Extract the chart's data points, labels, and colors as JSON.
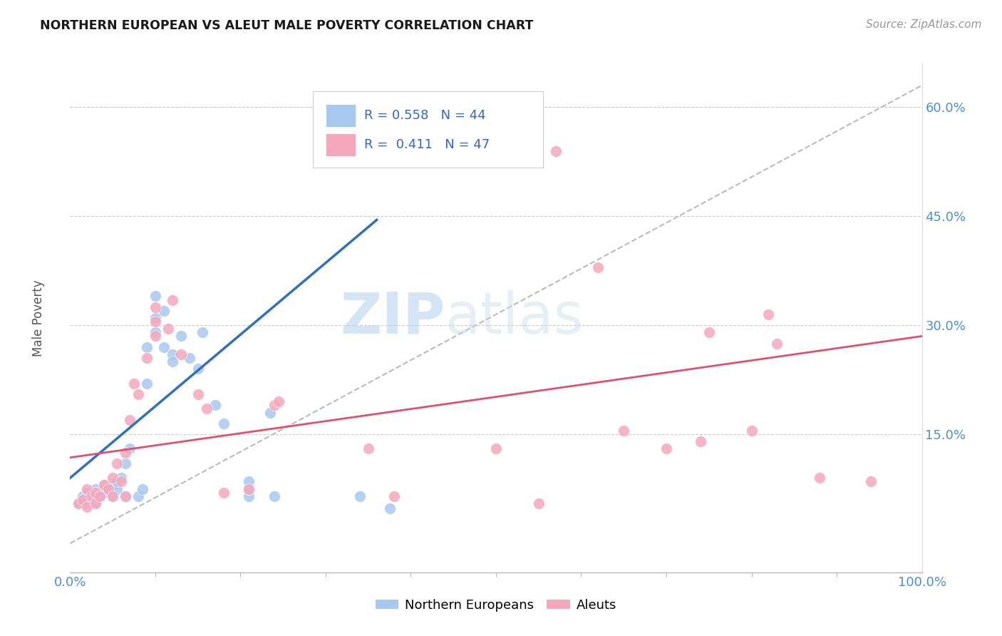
{
  "title": "NORTHERN EUROPEAN VS ALEUT MALE POVERTY CORRELATION CHART",
  "source": "Source: ZipAtlas.com",
  "ylabel": "Male Poverty",
  "xlabel": "",
  "xlim": [
    0,
    1.0
  ],
  "ylim": [
    -0.04,
    0.66
  ],
  "yticks": [
    0.0,
    0.15,
    0.3,
    0.45,
    0.6
  ],
  "ytick_labels": [
    "",
    "15.0%",
    "30.0%",
    "45.0%",
    "60.0%"
  ],
  "xticks": [
    0.0,
    1.0
  ],
  "xtick_labels": [
    "0.0%",
    "100.0%"
  ],
  "R_blue": 0.558,
  "N_blue": 44,
  "R_pink": 0.411,
  "N_pink": 47,
  "blue_color": "#a8c8f0",
  "pink_color": "#f5a8bc",
  "blue_line_color": "#3070c0",
  "pink_line_color": "#e05070",
  "ref_line_color": "#bbbbbb",
  "blue_line_x0": 0.0,
  "blue_line_y0": 0.09,
  "blue_line_x1": 0.36,
  "blue_line_y1": 0.445,
  "pink_line_x0": 0.0,
  "pink_line_y0": 0.118,
  "pink_line_x1": 1.0,
  "pink_line_y1": 0.285,
  "ref_line_x0": 0.0,
  "ref_line_y0": 0.0,
  "ref_line_x1": 1.0,
  "ref_line_y1": 0.63,
  "blue_scatter": [
    [
      0.01,
      0.055
    ],
    [
      0.015,
      0.065
    ],
    [
      0.02,
      0.055
    ],
    [
      0.02,
      0.07
    ],
    [
      0.025,
      0.06
    ],
    [
      0.03,
      0.055
    ],
    [
      0.03,
      0.065
    ],
    [
      0.03,
      0.075
    ],
    [
      0.035,
      0.065
    ],
    [
      0.04,
      0.07
    ],
    [
      0.04,
      0.08
    ],
    [
      0.045,
      0.075
    ],
    [
      0.05,
      0.08
    ],
    [
      0.05,
      0.065
    ],
    [
      0.055,
      0.075
    ],
    [
      0.055,
      0.085
    ],
    [
      0.06,
      0.09
    ],
    [
      0.065,
      0.11
    ],
    [
      0.065,
      0.065
    ],
    [
      0.07,
      0.13
    ],
    [
      0.08,
      0.065
    ],
    [
      0.085,
      0.075
    ],
    [
      0.09,
      0.27
    ],
    [
      0.09,
      0.22
    ],
    [
      0.1,
      0.29
    ],
    [
      0.1,
      0.31
    ],
    [
      0.1,
      0.34
    ],
    [
      0.11,
      0.27
    ],
    [
      0.11,
      0.32
    ],
    [
      0.12,
      0.26
    ],
    [
      0.12,
      0.25
    ],
    [
      0.13,
      0.285
    ],
    [
      0.14,
      0.255
    ],
    [
      0.15,
      0.24
    ],
    [
      0.155,
      0.29
    ],
    [
      0.17,
      0.19
    ],
    [
      0.18,
      0.165
    ],
    [
      0.21,
      0.065
    ],
    [
      0.21,
      0.075
    ],
    [
      0.21,
      0.085
    ],
    [
      0.235,
      0.18
    ],
    [
      0.24,
      0.065
    ],
    [
      0.34,
      0.065
    ],
    [
      0.375,
      0.048
    ]
  ],
  "pink_scatter": [
    [
      0.01,
      0.055
    ],
    [
      0.015,
      0.06
    ],
    [
      0.02,
      0.05
    ],
    [
      0.02,
      0.075
    ],
    [
      0.025,
      0.065
    ],
    [
      0.03,
      0.055
    ],
    [
      0.03,
      0.07
    ],
    [
      0.035,
      0.065
    ],
    [
      0.04,
      0.08
    ],
    [
      0.045,
      0.075
    ],
    [
      0.05,
      0.065
    ],
    [
      0.05,
      0.09
    ],
    [
      0.055,
      0.11
    ],
    [
      0.06,
      0.085
    ],
    [
      0.065,
      0.065
    ],
    [
      0.065,
      0.125
    ],
    [
      0.07,
      0.17
    ],
    [
      0.075,
      0.22
    ],
    [
      0.08,
      0.205
    ],
    [
      0.09,
      0.255
    ],
    [
      0.1,
      0.285
    ],
    [
      0.1,
      0.305
    ],
    [
      0.1,
      0.325
    ],
    [
      0.115,
      0.295
    ],
    [
      0.12,
      0.335
    ],
    [
      0.13,
      0.26
    ],
    [
      0.15,
      0.205
    ],
    [
      0.16,
      0.185
    ],
    [
      0.18,
      0.07
    ],
    [
      0.21,
      0.075
    ],
    [
      0.24,
      0.19
    ],
    [
      0.245,
      0.195
    ],
    [
      0.35,
      0.13
    ],
    [
      0.38,
      0.065
    ],
    [
      0.5,
      0.13
    ],
    [
      0.55,
      0.055
    ],
    [
      0.57,
      0.54
    ],
    [
      0.62,
      0.38
    ],
    [
      0.65,
      0.155
    ],
    [
      0.7,
      0.13
    ],
    [
      0.74,
      0.14
    ],
    [
      0.75,
      0.29
    ],
    [
      0.8,
      0.155
    ],
    [
      0.82,
      0.315
    ],
    [
      0.83,
      0.275
    ],
    [
      0.88,
      0.09
    ],
    [
      0.94,
      0.085
    ]
  ],
  "watermark_zip": "ZIP",
  "watermark_atlas": "atlas",
  "background_color": "#ffffff",
  "grid_color": "#cccccc"
}
